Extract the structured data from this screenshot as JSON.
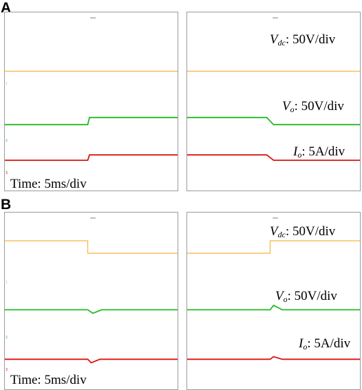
{
  "panels": [
    {
      "letter": "A",
      "time_label": "Time: 5ms/div"
    },
    {
      "letter": "B",
      "time_label": "Time: 5ms/div"
    }
  ],
  "labels": {
    "vdc_sym": "V",
    "vdc_sub": "dc",
    "vdc_scale": ": 50V/div",
    "vo_sym": "V",
    "vo_sub": "o",
    "vo_scale": ": 50V/div",
    "io_sym": "I",
    "io_sub": "o",
    "io_scale": ": 5A/div"
  },
  "colors": {
    "vdc": "#f5b342",
    "vo": "#22bb22",
    "io": "#dd1111",
    "frame": "#9a9a9a"
  },
  "chart_data": [
    {
      "type": "line",
      "panel": "A",
      "title": "",
      "xlabel": "Time: 5ms/div",
      "ylabel": "",
      "screens": [
        {
          "series": [
            {
              "name": "Vdc",
              "color_key": "vdc",
              "points": [
                [
                  0,
                  3.3
                ],
                [
                  10,
                  3.3
                ]
              ]
            },
            {
              "name": "Vo",
              "color_key": "vo",
              "points": [
                [
                  0,
                  6.3
                ],
                [
                  4.8,
                  6.3
                ],
                [
                  4.9,
                  5.9
                ],
                [
                  10,
                  5.9
                ]
              ]
            },
            {
              "name": "Io",
              "color_key": "io",
              "points": [
                [
                  0,
                  8.3
                ],
                [
                  4.8,
                  8.3
                ],
                [
                  4.9,
                  8.0
                ],
                [
                  10,
                  8.0
                ]
              ]
            }
          ]
        },
        {
          "series": [
            {
              "name": "Vdc",
              "color_key": "vdc",
              "points": [
                [
                  0,
                  3.3
                ],
                [
                  10,
                  3.3
                ]
              ]
            },
            {
              "name": "Vo",
              "color_key": "vo",
              "points": [
                [
                  0,
                  5.9
                ],
                [
                  4.6,
                  5.9
                ],
                [
                  5.0,
                  6.3
                ],
                [
                  10,
                  6.3
                ]
              ]
            },
            {
              "name": "Io",
              "color_key": "io",
              "points": [
                [
                  0,
                  8.0
                ],
                [
                  4.6,
                  8.0
                ],
                [
                  5.0,
                  8.3
                ],
                [
                  10,
                  8.3
                ]
              ]
            }
          ]
        }
      ]
    },
    {
      "type": "line",
      "panel": "B",
      "title": "",
      "xlabel": "Time: 5ms/div",
      "ylabel": "",
      "screens": [
        {
          "series": [
            {
              "name": "Vdc",
              "color_key": "vdc",
              "points": [
                [
                  0,
                  1.6
                ],
                [
                  4.8,
                  1.6
                ],
                [
                  4.8,
                  2.3
                ],
                [
                  10,
                  2.3
                ]
              ]
            },
            {
              "name": "Vo",
              "color_key": "vo",
              "points": [
                [
                  0,
                  5.5
                ],
                [
                  4.8,
                  5.5
                ],
                [
                  5.1,
                  5.7
                ],
                [
                  5.6,
                  5.5
                ],
                [
                  10,
                  5.5
                ]
              ]
            },
            {
              "name": "Io",
              "color_key": "io",
              "points": [
                [
                  0,
                  8.3
                ],
                [
                  4.8,
                  8.3
                ],
                [
                  5.0,
                  8.5
                ],
                [
                  5.5,
                  8.3
                ],
                [
                  10,
                  8.3
                ]
              ]
            }
          ]
        },
        {
          "series": [
            {
              "name": "Vdc",
              "color_key": "vdc",
              "points": [
                [
                  0,
                  2.3
                ],
                [
                  4.8,
                  2.3
                ],
                [
                  4.8,
                  1.6
                ],
                [
                  10,
                  1.6
                ]
              ]
            },
            {
              "name": "Vo",
              "color_key": "vo",
              "points": [
                [
                  0,
                  5.5
                ],
                [
                  4.8,
                  5.5
                ],
                [
                  5.0,
                  5.25
                ],
                [
                  5.5,
                  5.5
                ],
                [
                  10,
                  5.5
                ]
              ]
            },
            {
              "name": "Io",
              "color_key": "io",
              "points": [
                [
                  0,
                  8.3
                ],
                [
                  4.8,
                  8.3
                ],
                [
                  5.0,
                  8.15
                ],
                [
                  5.5,
                  8.3
                ],
                [
                  10,
                  8.3
                ]
              ]
            }
          ]
        }
      ]
    }
  ]
}
